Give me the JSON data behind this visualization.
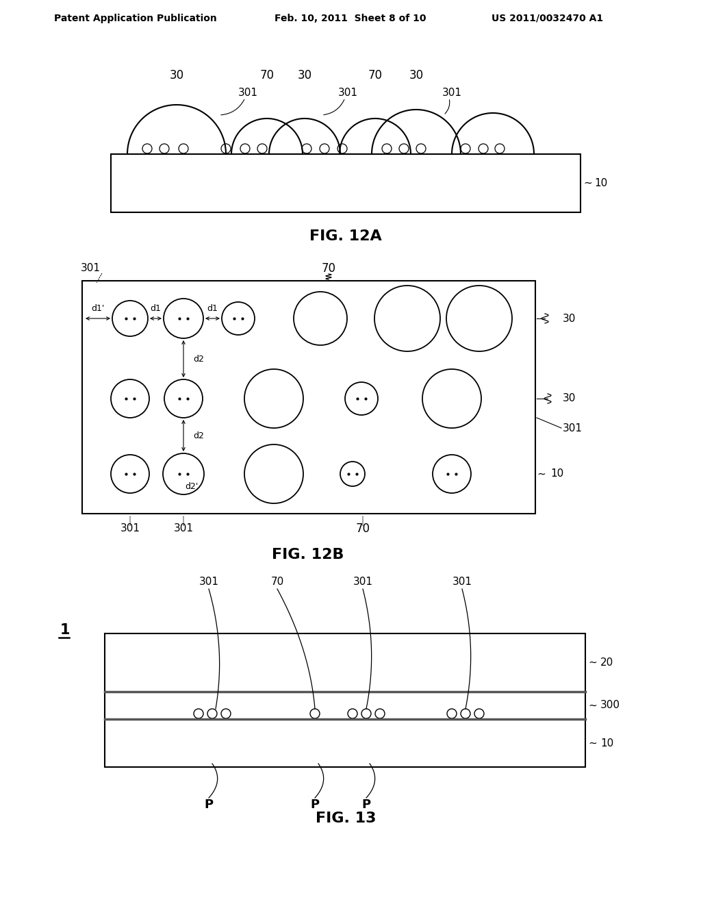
{
  "bg_color": "#ffffff",
  "header_left": "Patent Application Publication",
  "header_mid": "Feb. 10, 2011  Sheet 8 of 10",
  "header_right": "US 2011/0032470 A1",
  "fig12a_label": "FIG. 12A",
  "fig12b_label": "FIG. 12B",
  "fig13_label": "FIG. 13"
}
